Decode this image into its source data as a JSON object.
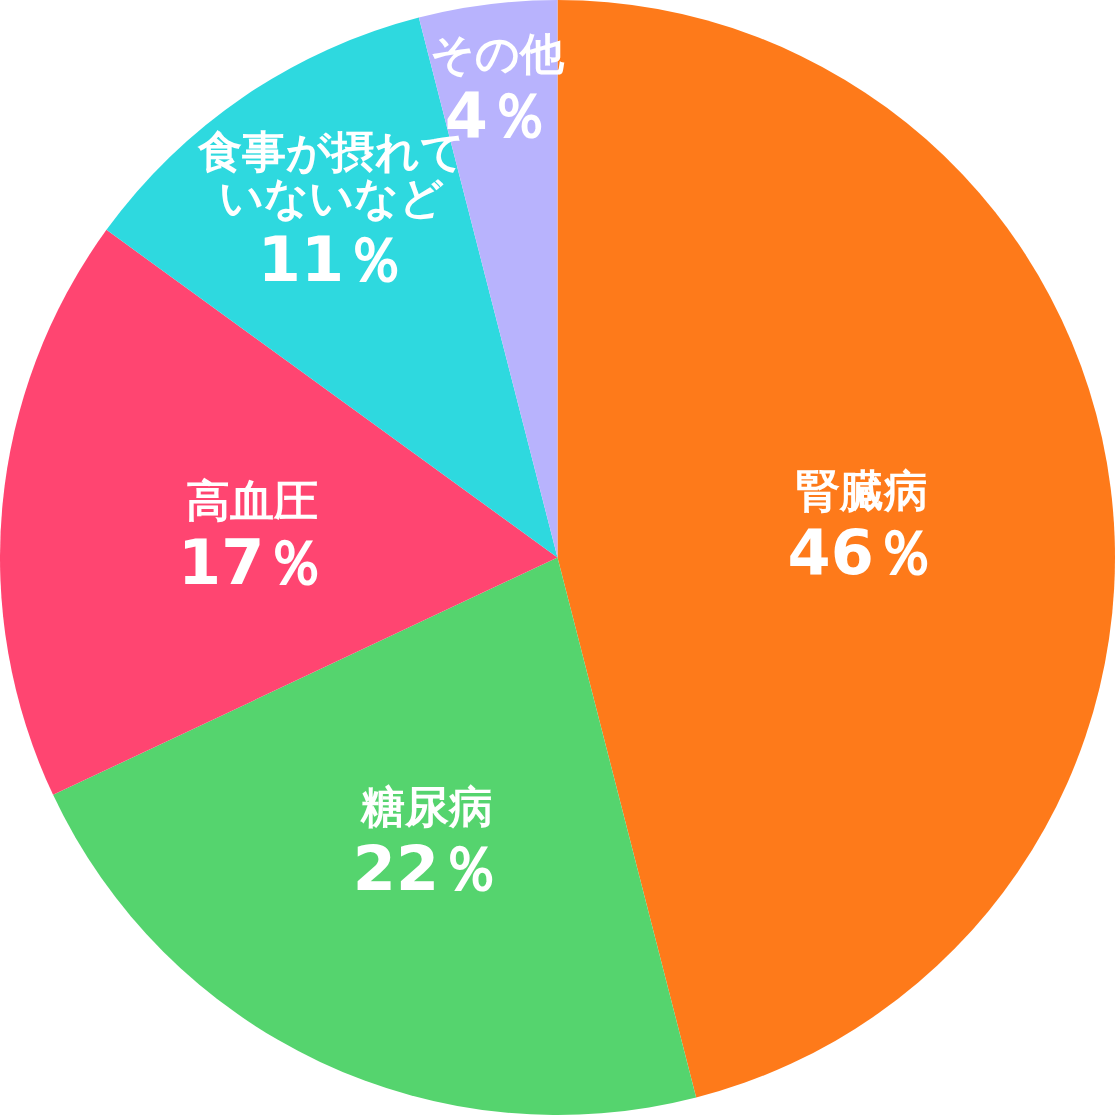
{
  "chart_data": {
    "type": "pie",
    "categories": [
      "腎臓病",
      "糖尿病",
      "高血圧",
      "食事が摂れていないなど",
      "その他"
    ],
    "values": [
      46,
      22,
      17,
      11,
      4
    ],
    "colors": [
      "#fe7a1a",
      "#55d46e",
      "#ff4571",
      "#2ed9df",
      "#b8b3fd"
    ],
    "value_labels": [
      "46％",
      "22％",
      "17％",
      "11％",
      "4％"
    ]
  }
}
